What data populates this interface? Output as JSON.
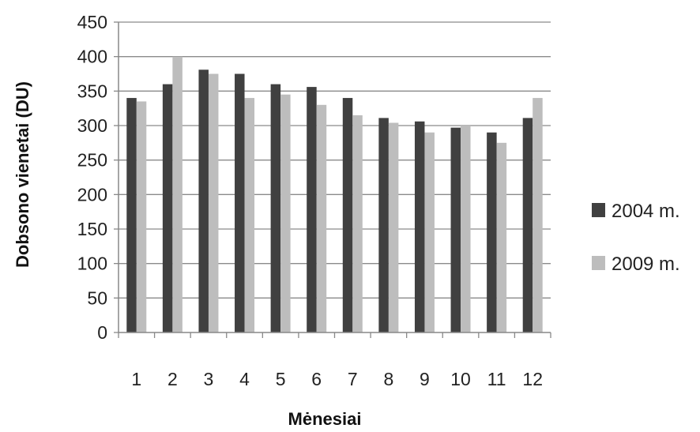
{
  "chart_data": {
    "type": "bar",
    "categories": [
      "1",
      "2",
      "3",
      "4",
      "5",
      "6",
      "7",
      "8",
      "9",
      "10",
      "11",
      "12"
    ],
    "series": [
      {
        "name": "2004 m.",
        "color": "#404040",
        "values": [
          340,
          360,
          381,
          375,
          360,
          356,
          340,
          311,
          306,
          297,
          290,
          311
        ]
      },
      {
        "name": "2009 m.",
        "color": "#bdbdbd",
        "values": [
          335,
          400,
          375,
          340,
          345,
          330,
          315,
          304,
          290,
          300,
          275,
          340
        ]
      }
    ],
    "y_ticks": [
      "0",
      "50",
      "100",
      "150",
      "200",
      "250",
      "300",
      "350",
      "400",
      "450"
    ],
    "xlabel": "Mėnesiai",
    "ylabel": "Dobsono vienetai (DU)",
    "ylim": [
      0,
      450
    ],
    "grid": true,
    "legend_position": "right"
  }
}
